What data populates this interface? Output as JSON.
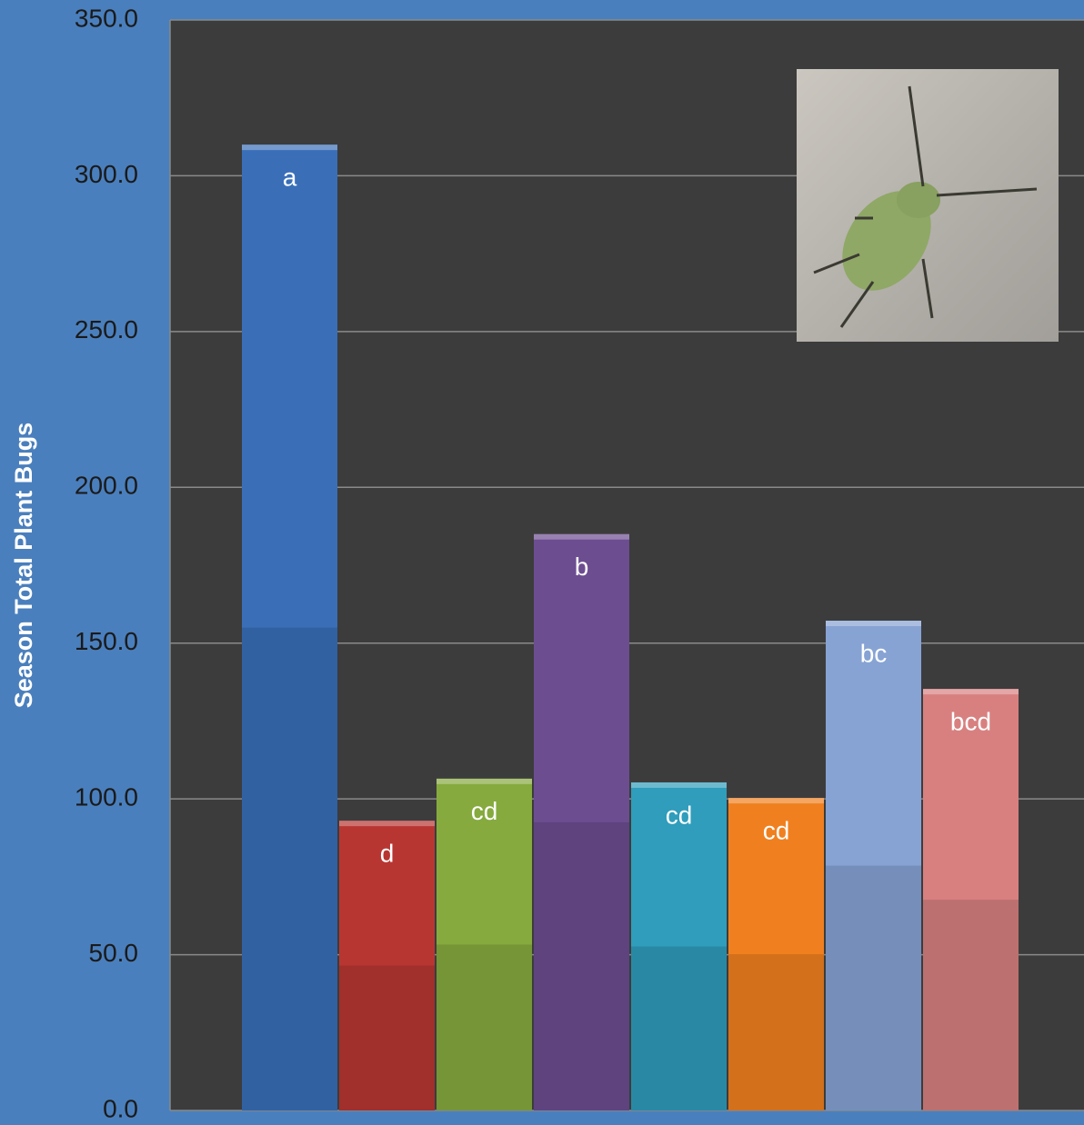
{
  "chart_data": {
    "type": "bar",
    "y_label": "Season Total Plant Bugs",
    "categories": [
      null,
      null,
      null,
      null,
      null,
      null,
      null,
      null
    ],
    "values": [
      310,
      93,
      106.5,
      185,
      105.3,
      100.3,
      157.2,
      135.3
    ],
    "letters": [
      "a",
      "d",
      "cd",
      "b",
      "cd",
      "cd",
      "bc",
      "bcd"
    ],
    "colors": [
      "#3a6fb8",
      "#b83632",
      "#86aa3e",
      "#6c4d90",
      "#2f9dbb",
      "#f0801f",
      "#87a3d4",
      "#d88080"
    ],
    "ylim": [
      0,
      350
    ],
    "yticks": [
      {
        "value": 0,
        "label": "0.0"
      },
      {
        "value": 50,
        "label": "50.0"
      },
      {
        "value": 100,
        "label": "100.0"
      },
      {
        "value": 150,
        "label": "150.0"
      },
      {
        "value": 200,
        "label": "200.0"
      },
      {
        "value": 250,
        "label": "250.0"
      },
      {
        "value": 300,
        "label": "300.0"
      },
      {
        "value": 350,
        "label": "350.0"
      }
    ],
    "grid": true
  }
}
